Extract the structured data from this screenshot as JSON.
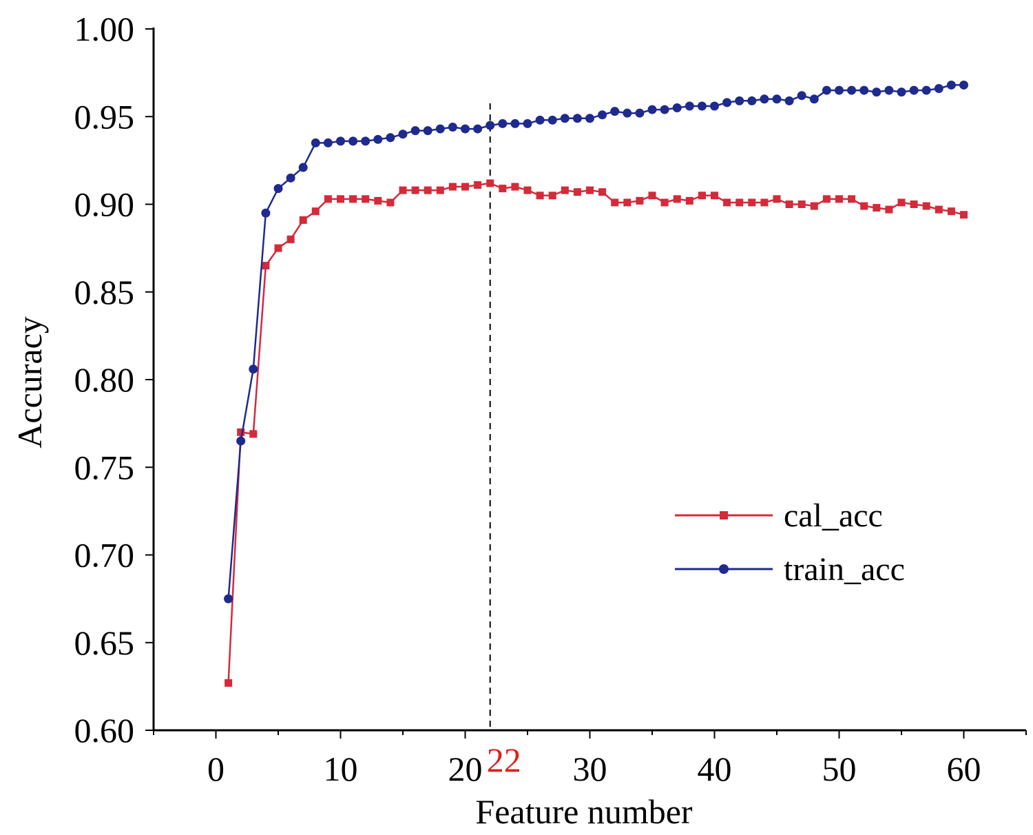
{
  "chart_data": {
    "type": "line",
    "xlabel": "Feature number",
    "ylabel": "Accuracy",
    "xlim": [
      -5,
      65
    ],
    "ylim": [
      0.6,
      1.0
    ],
    "xticks": [
      "0",
      "10",
      "20",
      "30",
      "40",
      "50",
      "60"
    ],
    "yticks": [
      "0.60",
      "0.65",
      "0.70",
      "0.75",
      "0.80",
      "0.85",
      "0.90",
      "0.95",
      "1.00"
    ],
    "grid": false,
    "legend_position": "right",
    "annotation": {
      "x": 22,
      "label": "22",
      "color": "#e0201c",
      "style": "dashed vertical line"
    },
    "x": [
      1,
      2,
      3,
      4,
      5,
      6,
      7,
      8,
      9,
      10,
      11,
      12,
      13,
      14,
      15,
      16,
      17,
      18,
      19,
      20,
      21,
      22,
      23,
      24,
      25,
      26,
      27,
      28,
      29,
      30,
      31,
      32,
      33,
      34,
      35,
      36,
      37,
      38,
      39,
      40,
      41,
      42,
      43,
      44,
      45,
      46,
      47,
      48,
      49,
      50,
      51,
      52,
      53,
      54,
      55,
      56,
      57,
      58,
      59,
      60
    ],
    "series": [
      {
        "name": "cal_acc",
        "color": "#d42a3a",
        "marker": "square",
        "values": [
          0.627,
          0.77,
          0.769,
          0.865,
          0.875,
          0.88,
          0.891,
          0.896,
          0.903,
          0.903,
          0.903,
          0.903,
          0.902,
          0.901,
          0.908,
          0.908,
          0.908,
          0.908,
          0.91,
          0.91,
          0.911,
          0.912,
          0.909,
          0.91,
          0.908,
          0.905,
          0.905,
          0.908,
          0.907,
          0.908,
          0.907,
          0.901,
          0.901,
          0.902,
          0.905,
          0.901,
          0.903,
          0.902,
          0.905,
          0.905,
          0.901,
          0.901,
          0.901,
          0.901,
          0.903,
          0.9,
          0.9,
          0.899,
          0.903,
          0.903,
          0.903,
          0.899,
          0.898,
          0.897,
          0.901,
          0.9,
          0.899,
          0.897,
          0.896,
          0.894
        ]
      },
      {
        "name": "train_acc",
        "color": "#1e2a8e",
        "marker": "circle",
        "values": [
          0.675,
          0.765,
          0.806,
          0.895,
          0.909,
          0.915,
          0.921,
          0.935,
          0.935,
          0.936,
          0.936,
          0.936,
          0.937,
          0.938,
          0.94,
          0.942,
          0.942,
          0.943,
          0.944,
          0.943,
          0.943,
          0.945,
          0.946,
          0.946,
          0.946,
          0.948,
          0.948,
          0.949,
          0.949,
          0.949,
          0.951,
          0.953,
          0.952,
          0.952,
          0.954,
          0.954,
          0.955,
          0.956,
          0.956,
          0.956,
          0.958,
          0.959,
          0.959,
          0.96,
          0.96,
          0.959,
          0.962,
          0.96,
          0.965,
          0.965,
          0.965,
          0.965,
          0.964,
          0.965,
          0.964,
          0.965,
          0.965,
          0.966,
          0.968,
          0.968
        ]
      }
    ]
  }
}
